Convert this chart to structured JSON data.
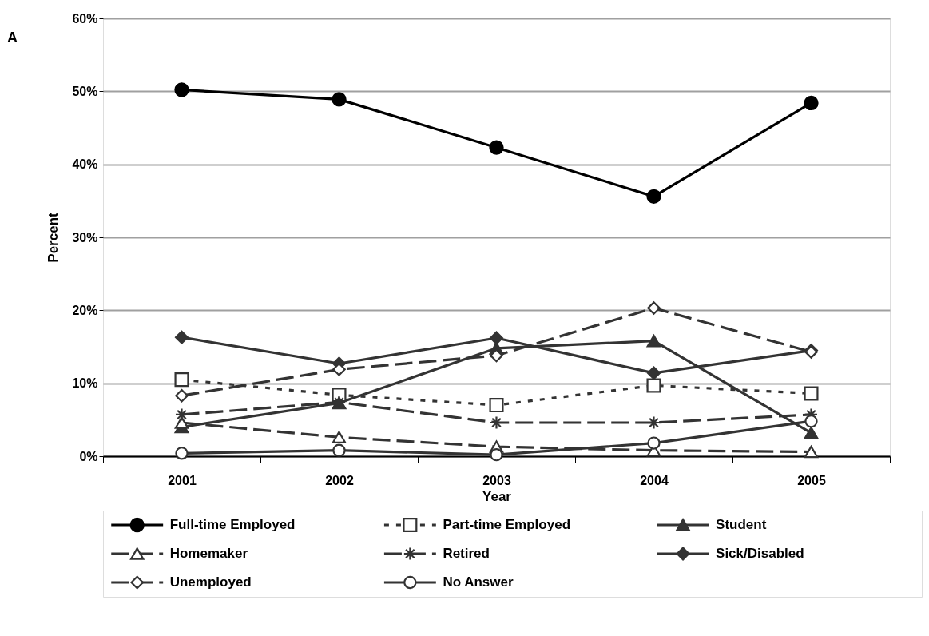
{
  "chart_data": {
    "type": "line",
    "xlabel": "Year",
    "ylabel": "Percent",
    "annotations": [
      "A"
    ],
    "categories": [
      "2001",
      "2002",
      "2003",
      "2004",
      "2005"
    ],
    "ylim": [
      0,
      60
    ],
    "yticks": [
      {
        "value": 0,
        "label": "0%"
      },
      {
        "value": 10,
        "label": "10%"
      },
      {
        "value": 20,
        "label": "20%"
      },
      {
        "value": 30,
        "label": "30%"
      },
      {
        "value": 40,
        "label": "40%"
      },
      {
        "value": 50,
        "label": "50%"
      },
      {
        "value": 60,
        "label": "60%"
      }
    ],
    "grid": "y",
    "legend": "bottom",
    "series": [
      {
        "name": "Full-time Employed",
        "color": "#000000",
        "marker": "circle",
        "line_style": "solid",
        "values": [
          50.2,
          48.9,
          42.3,
          35.6,
          48.4
        ]
      },
      {
        "name": "Part-time Employed",
        "color": "#333333",
        "marker": "square",
        "line_style": "dotted",
        "values": [
          10.5,
          8.4,
          7.0,
          9.7,
          8.6
        ]
      },
      {
        "name": "Student",
        "color": "#333333",
        "marker": "triangle",
        "line_style": "solid",
        "values": [
          4.0,
          7.3,
          14.8,
          15.8,
          3.2
        ]
      },
      {
        "name": "Homemaker",
        "color": "#333333",
        "marker": "triangle",
        "line_style": "dashed",
        "values": [
          4.6,
          2.6,
          1.3,
          0.8,
          0.6
        ]
      },
      {
        "name": "Retired",
        "color": "#333333",
        "marker": "cross",
        "line_style": "dashed",
        "values": [
          5.7,
          7.4,
          4.6,
          4.6,
          5.7
        ]
      },
      {
        "name": "Sick/Disabled",
        "color": "#333333",
        "marker": "diamond",
        "line_style": "solid",
        "values": [
          16.3,
          12.7,
          16.2,
          11.4,
          14.5
        ]
      },
      {
        "name": "Unemployed",
        "color": "#333333",
        "marker": "diamond",
        "line_style": "dashed",
        "values": [
          8.3,
          11.9,
          13.8,
          20.3,
          14.3
        ]
      },
      {
        "name": "No Answer",
        "color": "#333333",
        "marker": "circle",
        "line_style": "solid",
        "values": [
          0.4,
          0.8,
          0.2,
          1.8,
          4.8
        ]
      }
    ]
  }
}
